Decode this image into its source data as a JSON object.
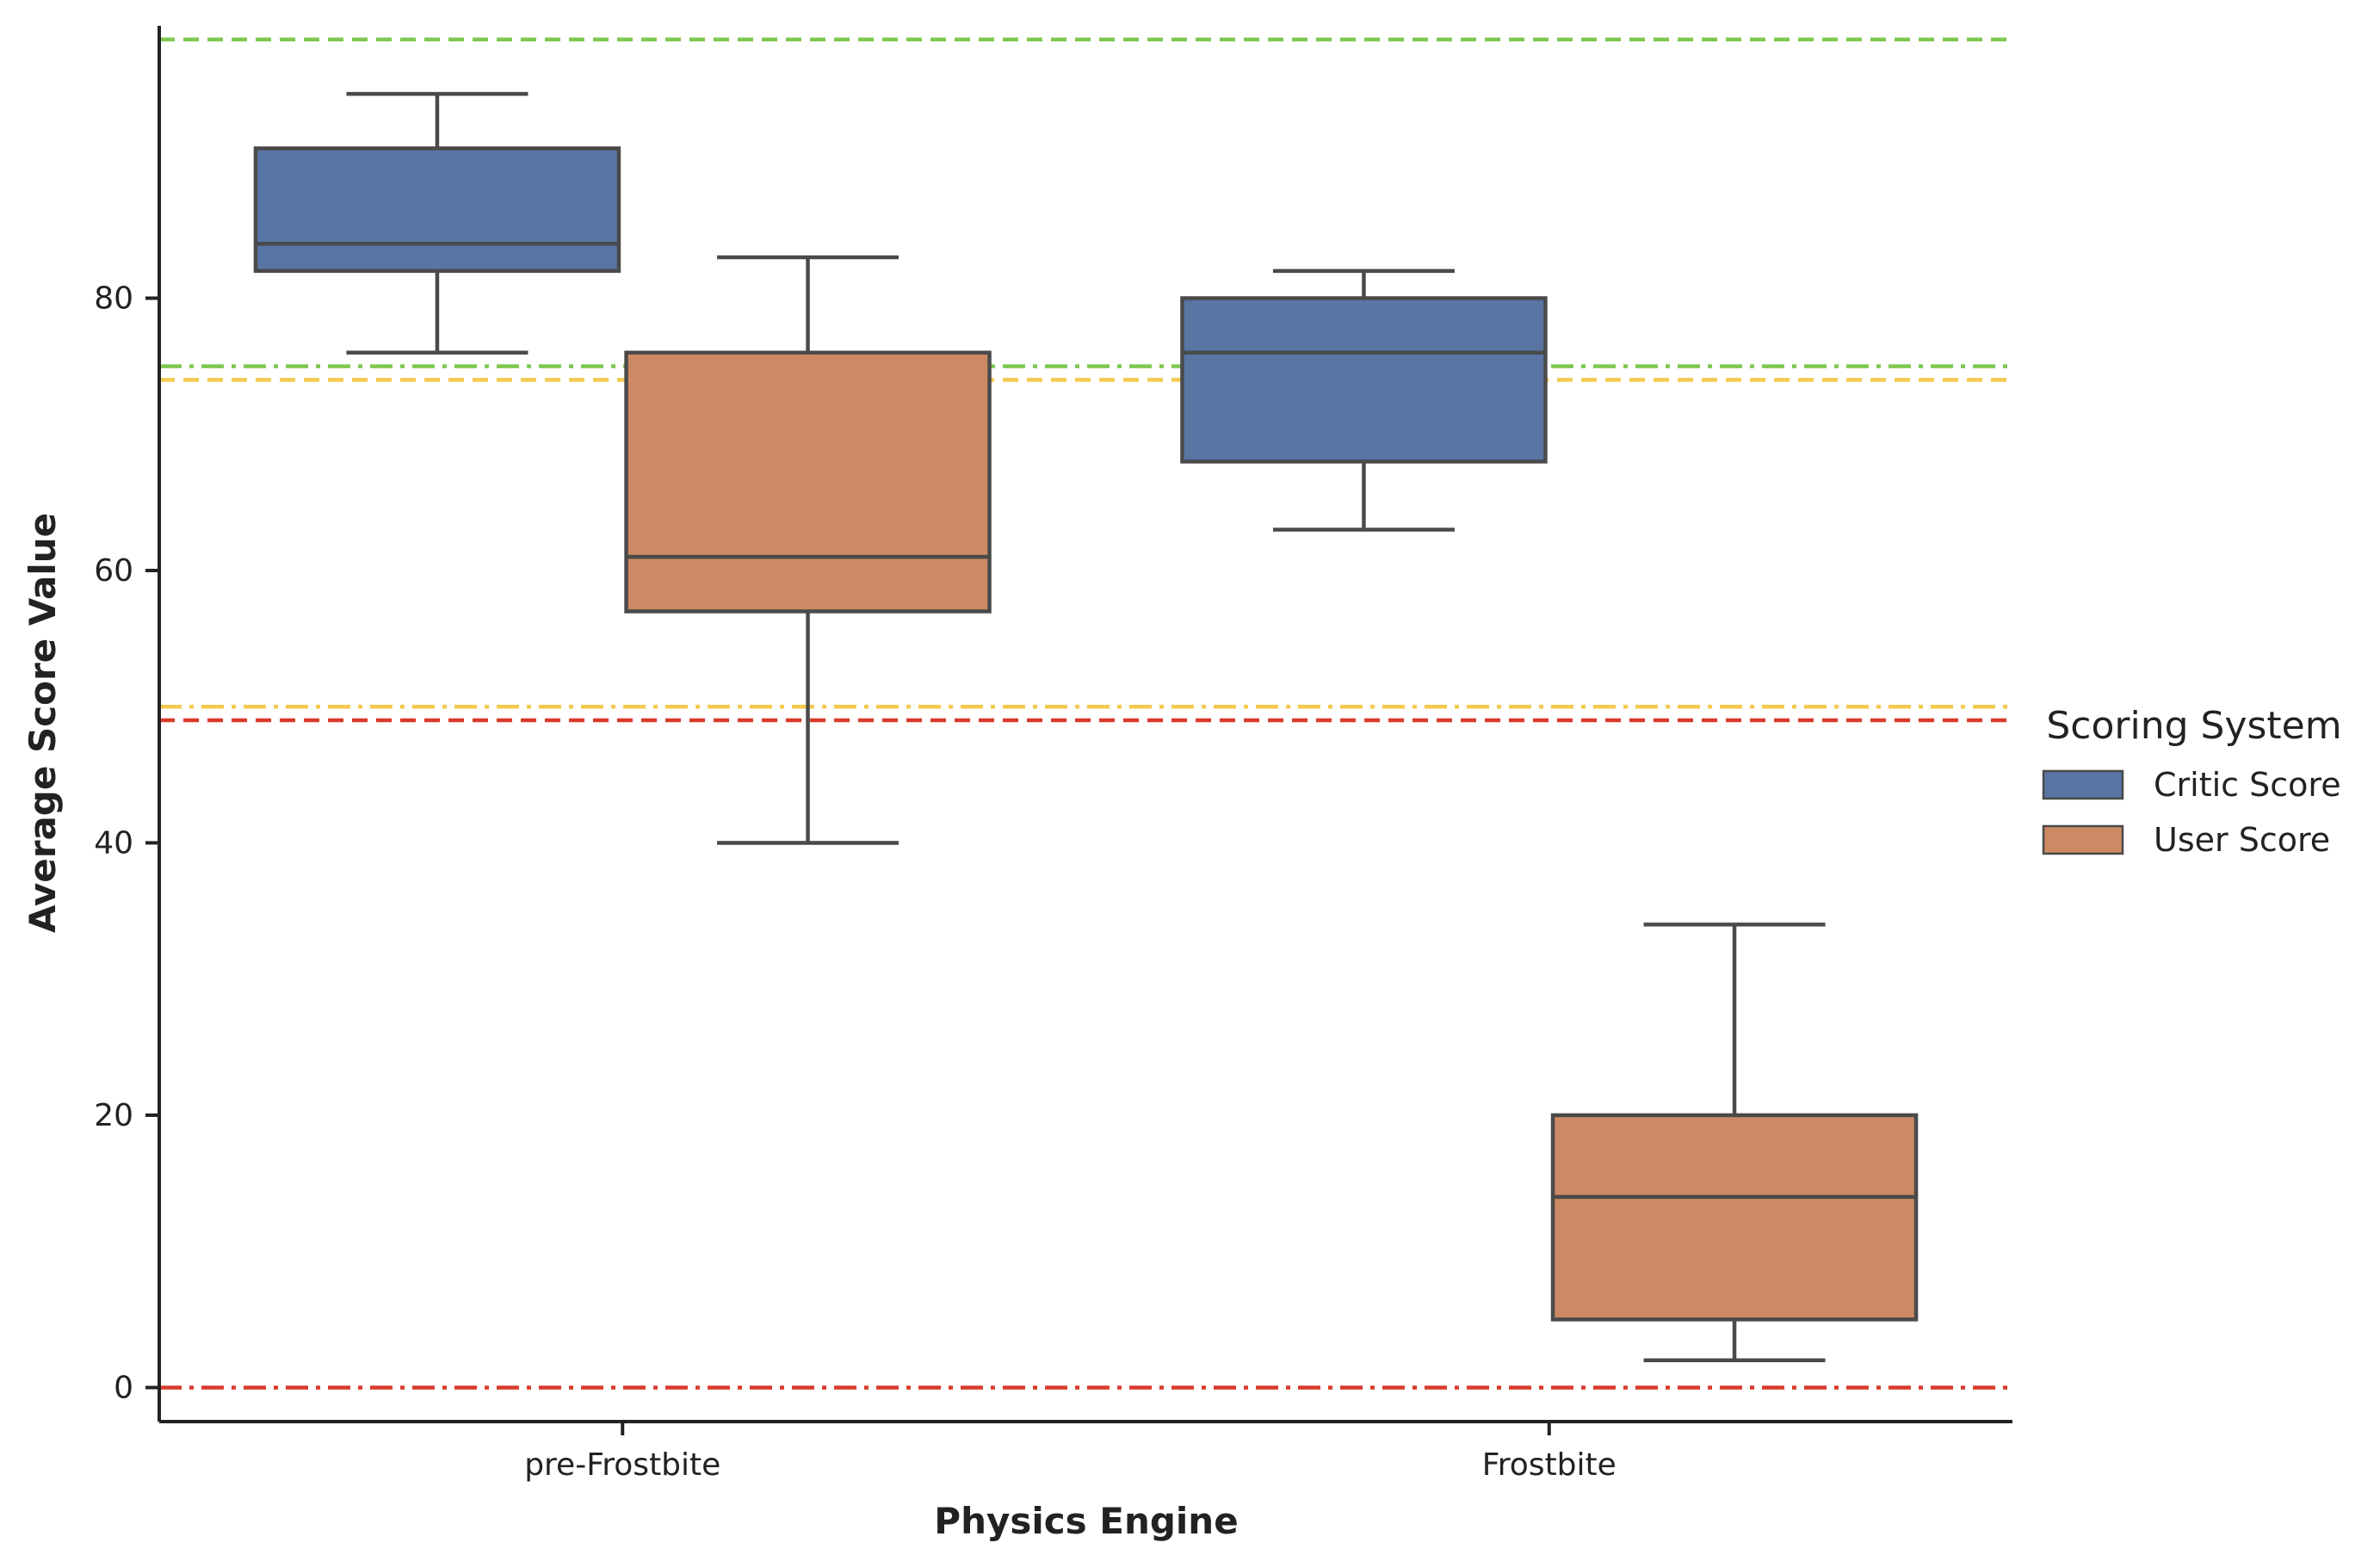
{
  "chart_data": {
    "type": "box",
    "xlabel": "Physics Engine",
    "ylabel": "Average Score Value",
    "categories": [
      "pre-Frostbite",
      "Frostbite"
    ],
    "ylim": [
      -2.5,
      100
    ],
    "yticks": [
      0,
      20,
      40,
      60,
      80
    ],
    "grid": false,
    "legend": {
      "title": "Scoring System",
      "position": "right"
    },
    "series": [
      {
        "name": "Critic Score",
        "color": "#5875A4",
        "boxes": [
          {
            "category": "pre-Frostbite",
            "whisker_low": 76,
            "q1": 82,
            "median": 84,
            "q3": 91,
            "whisker_high": 95
          },
          {
            "category": "Frostbite",
            "whisker_low": 63,
            "q1": 68,
            "median": 76,
            "q3": 80,
            "whisker_high": 82
          }
        ]
      },
      {
        "name": "User Score",
        "color": "#CC8963",
        "boxes": [
          {
            "category": "pre-Frostbite",
            "whisker_low": 40,
            "q1": 57,
            "median": 61,
            "q3": 76,
            "whisker_high": 83
          },
          {
            "category": "Frostbite",
            "whisker_low": 2,
            "q1": 5,
            "median": 14,
            "q3": 20,
            "whisker_high": 34
          }
        ]
      }
    ],
    "reference_lines": [
      {
        "y": 99,
        "color": "#7EC850",
        "style": "dashed"
      },
      {
        "y": 75,
        "color": "#7EC850",
        "style": "dashdot"
      },
      {
        "y": 74,
        "color": "#F5C94E",
        "style": "dashed"
      },
      {
        "y": 50,
        "color": "#F5C94E",
        "style": "dashdot"
      },
      {
        "y": 49,
        "color": "#D93A2B",
        "style": "dashed"
      },
      {
        "y": 0,
        "color": "#D93A2B",
        "style": "dashdot"
      }
    ]
  }
}
